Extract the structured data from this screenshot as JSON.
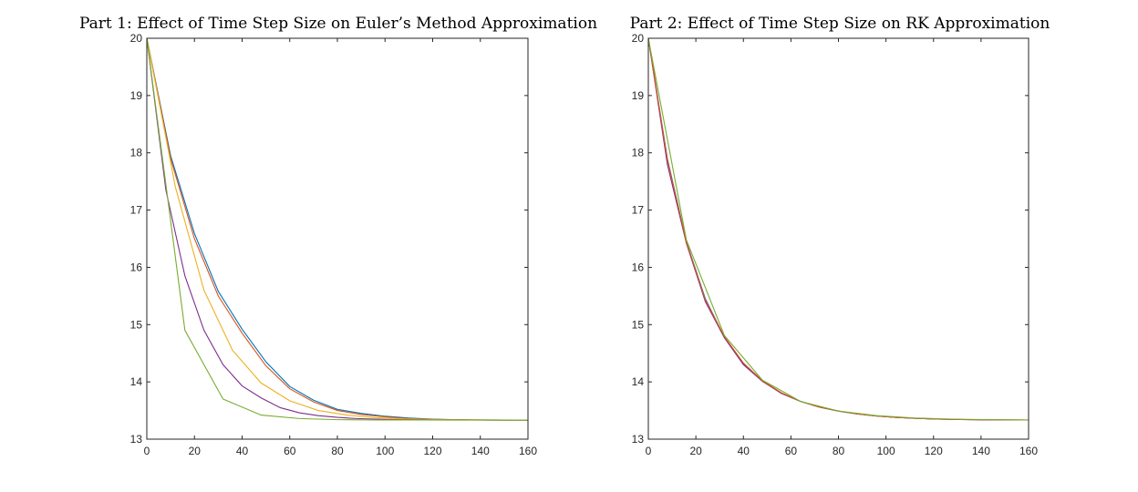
{
  "chart_data": [
    {
      "type": "line",
      "title": "Part 1: Effect of Time Step Size on Euler’s Method Approximation",
      "xlabel": "",
      "ylabel": "",
      "xlim": [
        0,
        160
      ],
      "ylim": [
        13,
        20
      ],
      "xticks": [
        0,
        20,
        40,
        60,
        80,
        100,
        120,
        140,
        160
      ],
      "yticks": [
        13,
        14,
        15,
        16,
        17,
        18,
        19,
        20
      ],
      "grid": false,
      "legend": "none",
      "series": [
        {
          "color": "#0072BD",
          "x": [
            0,
            10,
            20,
            30,
            40,
            50,
            60,
            70,
            80,
            90,
            100,
            110,
            120,
            130,
            140,
            150,
            160
          ],
          "y": [
            20,
            17.95,
            16.59,
            15.58,
            14.92,
            14.35,
            13.92,
            13.68,
            13.52,
            13.45,
            13.4,
            13.37,
            13.35,
            13.34,
            13.335,
            13.333,
            13.333
          ]
        },
        {
          "color": "#D95319",
          "x": [
            0,
            10,
            20,
            30,
            40,
            50,
            60,
            70,
            80,
            90,
            100,
            110,
            120,
            130,
            140,
            150,
            160
          ],
          "y": [
            20,
            17.9,
            16.5,
            15.5,
            14.85,
            14.28,
            13.88,
            13.65,
            13.5,
            13.43,
            13.39,
            13.36,
            13.345,
            13.338,
            13.335,
            13.333,
            13.333
          ]
        },
        {
          "color": "#EDB120",
          "x": [
            0,
            12,
            24,
            36,
            48,
            60,
            72,
            84,
            96,
            108,
            120,
            132,
            144,
            156,
            160
          ],
          "y": [
            20,
            17.4,
            15.6,
            14.55,
            13.98,
            13.67,
            13.5,
            13.42,
            13.375,
            13.353,
            13.342,
            13.337,
            13.335,
            13.333,
            13.333
          ]
        },
        {
          "color": "#7E2F8E",
          "x": [
            0,
            8,
            16,
            24,
            32,
            40,
            48,
            56,
            64,
            72,
            80,
            88,
            96,
            104,
            112,
            120,
            128,
            136,
            144,
            152,
            160
          ],
          "y": [
            20,
            17.35,
            15.85,
            14.9,
            14.3,
            13.93,
            13.72,
            13.55,
            13.46,
            13.41,
            13.38,
            13.36,
            13.35,
            13.342,
            13.338,
            13.336,
            13.335,
            13.334,
            13.333,
            13.333,
            13.333
          ]
        },
        {
          "color": "#77AC30",
          "x": [
            0,
            16,
            32,
            48,
            64,
            80,
            96,
            112,
            128,
            144,
            160
          ],
          "y": [
            20,
            14.9,
            13.7,
            13.42,
            13.36,
            13.34,
            13.335,
            13.334,
            13.333,
            13.333,
            13.333
          ]
        }
      ]
    },
    {
      "type": "line",
      "title": "Part 2: Effect of Time Step Size on RK Approximation",
      "xlabel": "",
      "ylabel": "",
      "xlim": [
        0,
        160
      ],
      "ylim": [
        13,
        20
      ],
      "xticks": [
        0,
        20,
        40,
        60,
        80,
        100,
        120,
        140,
        160
      ],
      "yticks": [
        13,
        14,
        15,
        16,
        17,
        18,
        19,
        20
      ],
      "grid": false,
      "legend": "none",
      "series": [
        {
          "color": "#0072BD",
          "x": [
            0,
            8,
            16,
            24,
            32,
            40,
            48,
            56,
            64,
            72,
            80,
            88,
            96,
            104,
            112,
            120,
            128,
            136,
            144,
            152,
            160
          ],
          "y": [
            20,
            17.9,
            16.45,
            15.45,
            14.78,
            14.32,
            14.02,
            13.8,
            13.66,
            13.56,
            13.49,
            13.44,
            13.405,
            13.38,
            13.365,
            13.352,
            13.345,
            13.34,
            13.337,
            13.335,
            13.334
          ]
        },
        {
          "color": "#7E2F8E",
          "x": [
            0,
            8,
            16,
            24,
            32,
            40,
            48,
            56,
            64,
            72,
            80,
            88,
            96,
            104,
            112,
            120,
            128,
            136,
            144,
            152,
            160
          ],
          "y": [
            20,
            17.8,
            16.42,
            15.4,
            14.77,
            14.3,
            14.01,
            13.8,
            13.66,
            13.56,
            13.49,
            13.44,
            13.405,
            13.38,
            13.365,
            13.352,
            13.345,
            13.34,
            13.337,
            13.335,
            13.334
          ]
        },
        {
          "color": "#D95319",
          "x": [
            0,
            8,
            16,
            24,
            32,
            40,
            48,
            56,
            64,
            72,
            80,
            88,
            96,
            104,
            112,
            120,
            128,
            136,
            144,
            152,
            160
          ],
          "y": [
            20,
            17.88,
            16.44,
            15.43,
            14.79,
            14.33,
            14.02,
            13.81,
            13.66,
            13.56,
            13.49,
            13.44,
            13.405,
            13.38,
            13.365,
            13.352,
            13.345,
            13.34,
            13.337,
            13.335,
            13.334
          ]
        },
        {
          "color": "#77AC30",
          "x": [
            0,
            16,
            32,
            48,
            64,
            80,
            96,
            112,
            128,
            144,
            160
          ],
          "y": [
            20,
            16.48,
            14.81,
            14.03,
            13.66,
            13.49,
            13.41,
            13.37,
            13.35,
            13.34,
            13.335
          ]
        }
      ]
    }
  ]
}
